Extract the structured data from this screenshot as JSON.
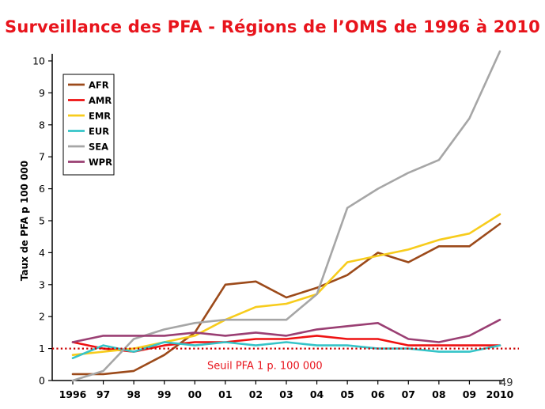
{
  "page_number": "49",
  "chart_data": {
    "type": "line",
    "title": "Surveillance des PFA  -  Régions de l’OMS de 1996 à 2010",
    "xlabel": "",
    "ylabel": "Taux de PFA p 100 000",
    "categories": [
      "1996",
      "97",
      "98",
      "99",
      "00",
      "01",
      "02",
      "03",
      "04",
      "05",
      "06",
      "07",
      "08",
      "09",
      "2010"
    ],
    "ylim": [
      0,
      10
    ],
    "yticks": [
      "0",
      "1",
      "2",
      "3",
      "4",
      "5",
      "6",
      "7",
      "8",
      "9",
      "10"
    ],
    "grid": false,
    "legend_position": "top-left",
    "series": [
      {
        "name": "AFR",
        "color": "#9c4a1a",
        "values": [
          0.2,
          0.2,
          0.3,
          0.8,
          1.5,
          3.0,
          3.1,
          2.6,
          2.9,
          3.3,
          4.0,
          3.7,
          4.2,
          4.2,
          4.9
        ]
      },
      {
        "name": "AMR",
        "color": "#ee1111",
        "values": [
          1.2,
          1.0,
          0.9,
          1.1,
          1.2,
          1.2,
          1.3,
          1.3,
          1.4,
          1.3,
          1.3,
          1.1,
          1.1,
          1.1,
          1.1
        ]
      },
      {
        "name": "EMR",
        "color": "#f7cc1c",
        "values": [
          0.8,
          0.9,
          1.0,
          1.2,
          1.4,
          1.9,
          2.3,
          2.4,
          2.7,
          3.7,
          3.9,
          4.1,
          4.4,
          4.6,
          5.2
        ]
      },
      {
        "name": "EUR",
        "color": "#35c4c8",
        "values": [
          0.7,
          1.1,
          0.9,
          1.2,
          1.1,
          1.2,
          1.1,
          1.2,
          1.1,
          1.1,
          1.0,
          1.0,
          0.9,
          0.9,
          1.1
        ]
      },
      {
        "name": "SEA",
        "color": "#a6a6a6",
        "values": [
          0.0,
          0.3,
          1.3,
          1.6,
          1.8,
          1.9,
          1.9,
          1.9,
          2.7,
          5.4,
          6.0,
          6.5,
          6.9,
          8.2,
          10.3
        ]
      },
      {
        "name": "WPR",
        "color": "#9a3f73",
        "values": [
          1.2,
          1.4,
          1.4,
          1.4,
          1.5,
          1.4,
          1.5,
          1.4,
          1.6,
          1.7,
          1.8,
          1.3,
          1.2,
          1.4,
          1.9
        ]
      }
    ],
    "annotations": [
      {
        "type": "threshold",
        "y": 1,
        "label": "Seuil PFA 1 p. 100 000",
        "color": "#cc0000",
        "style": "dotted"
      }
    ]
  }
}
